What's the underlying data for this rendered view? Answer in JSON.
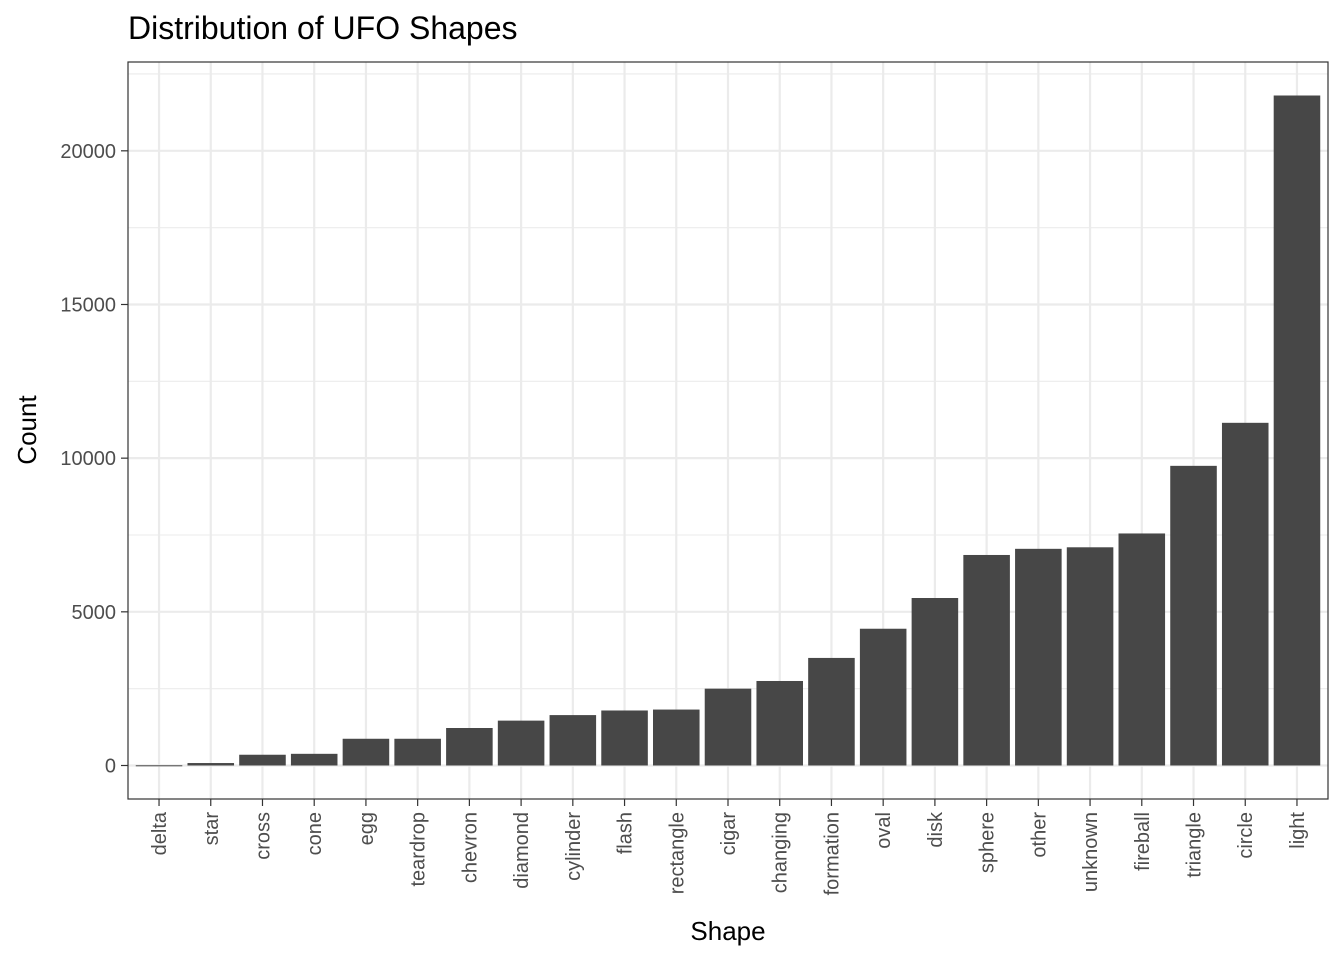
{
  "chart_data": {
    "type": "bar",
    "title": "Distribution of UFO Shapes",
    "xlabel": "Shape",
    "ylabel": "Count",
    "categories": [
      "delta",
      "star",
      "cross",
      "cone",
      "egg",
      "teardrop",
      "chevron",
      "diamond",
      "cylinder",
      "flash",
      "rectangle",
      "cigar",
      "changing",
      "formation",
      "oval",
      "disk",
      "sphere",
      "other",
      "unknown",
      "fireball",
      "triangle",
      "circle",
      "light"
    ],
    "values": [
      7,
      80,
      350,
      380,
      870,
      870,
      1220,
      1460,
      1640,
      1790,
      1820,
      2500,
      2750,
      3500,
      4450,
      5450,
      6850,
      7050,
      7100,
      7550,
      9750,
      11150,
      21800
    ],
    "ylim": [
      -1090,
      22890
    ],
    "yticks": [
      0,
      5000,
      10000,
      15000,
      20000
    ],
    "ytick_labels": [
      "0",
      "5000",
      "10000",
      "15000",
      "20000"
    ],
    "bar_color": "#474747",
    "grid": true,
    "legend": "none"
  }
}
